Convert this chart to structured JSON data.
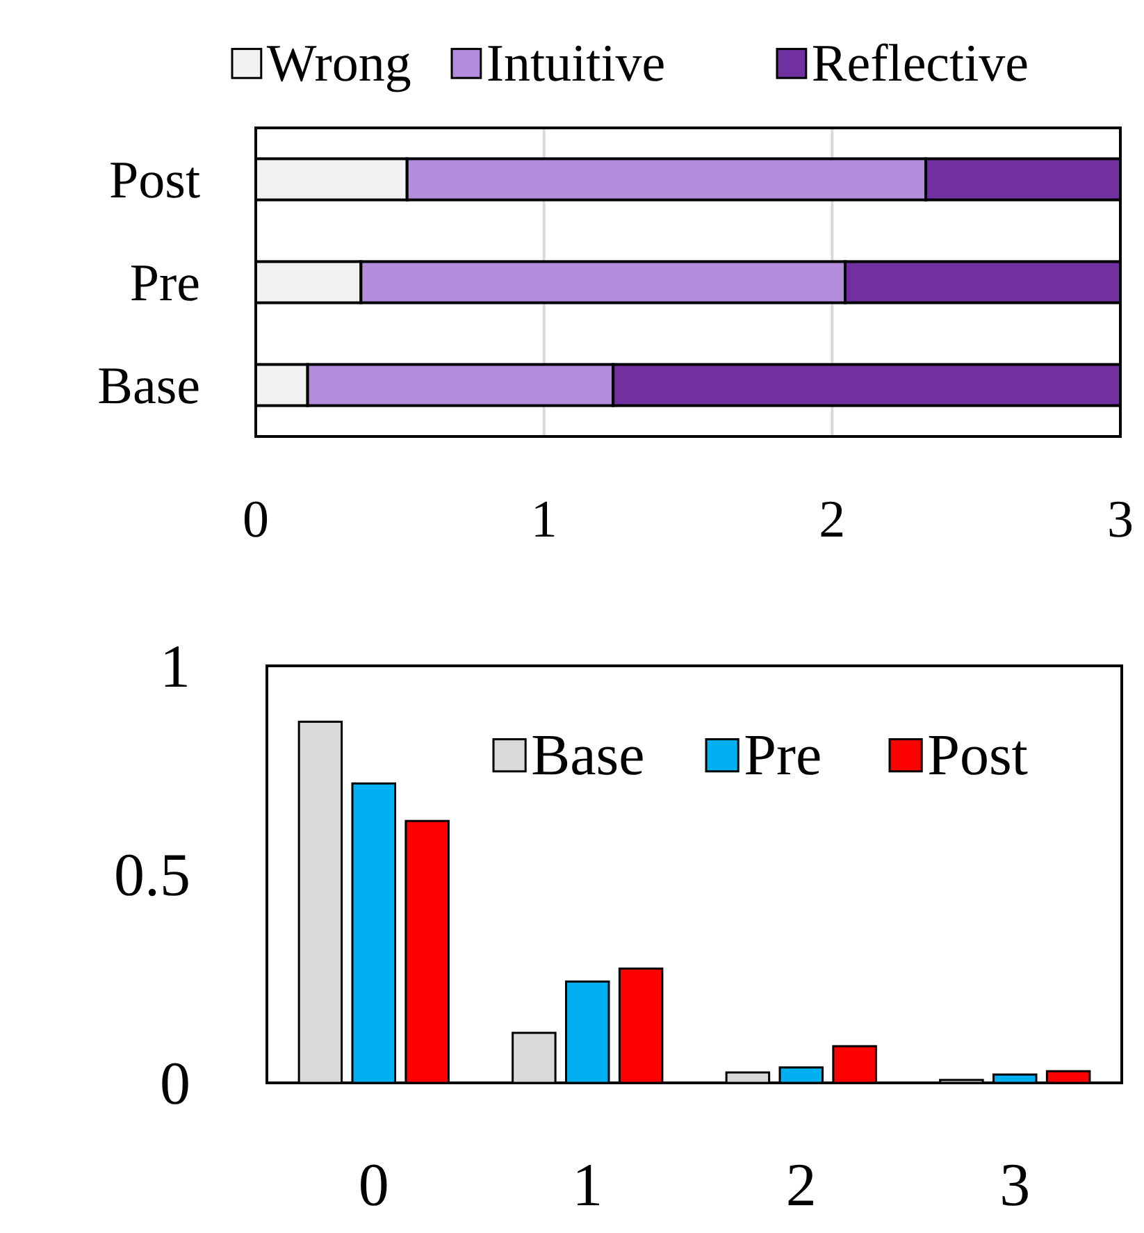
{
  "chart_data": [
    {
      "type": "bar",
      "orientation": "horizontal",
      "stacked": true,
      "categories": [
        "Post",
        "Pre",
        "Base"
      ],
      "series": [
        {
          "name": "Wrong",
          "color": "#f2f2f2",
          "values": [
            0.525,
            0.365,
            0.18
          ]
        },
        {
          "name": "Intuitive",
          "color": "#b38ddb",
          "values": [
            1.8,
            1.68,
            1.06
          ]
        },
        {
          "name": "Reflective",
          "color": "#7030a0",
          "values": [
            0.675,
            0.955,
            1.76
          ]
        }
      ],
      "xlim": [
        0,
        3
      ],
      "xticks": [
        0,
        1,
        2,
        3
      ],
      "grid": "x",
      "legend": "top"
    },
    {
      "type": "bar",
      "categories": [
        "0",
        "1",
        "2",
        "3"
      ],
      "series": [
        {
          "name": "Base",
          "color": "#d9d9d9",
          "values": [
            0.866,
            0.12,
            0.025,
            0.007
          ]
        },
        {
          "name": "Pre",
          "color": "#00b0f0",
          "values": [
            0.718,
            0.243,
            0.037,
            0.02
          ]
        },
        {
          "name": "Post",
          "color": "#ff0000",
          "values": [
            0.628,
            0.274,
            0.088,
            0.028
          ]
        }
      ],
      "ylim": [
        0,
        1
      ],
      "yticks": [
        0,
        0.5,
        1
      ],
      "legend": "top right"
    }
  ]
}
